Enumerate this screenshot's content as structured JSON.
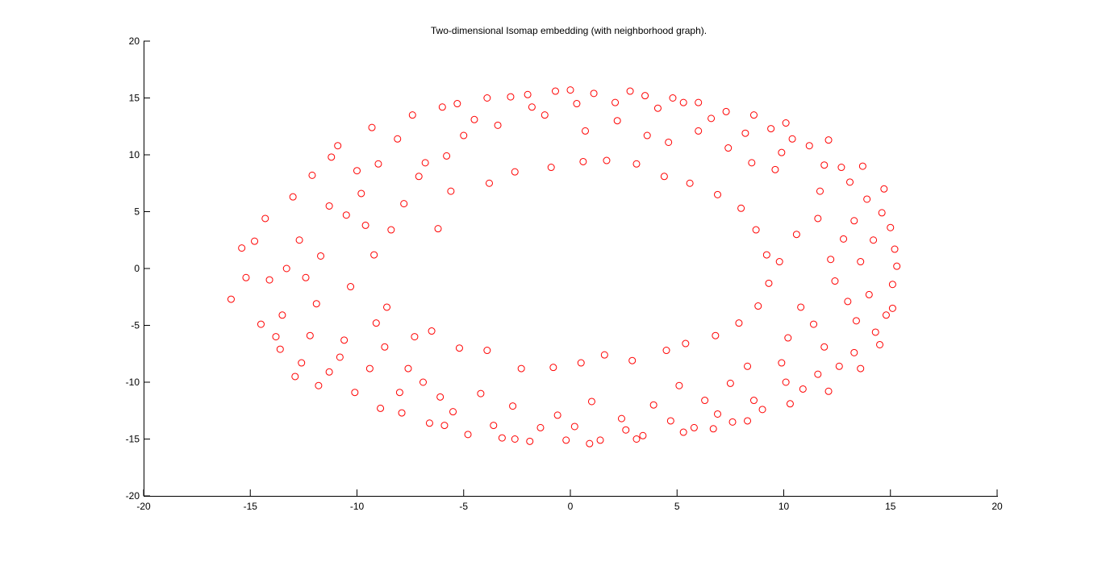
{
  "chart_data": {
    "type": "scatter",
    "title": "Two-dimensional Isomap embedding (with neighborhood graph).",
    "xlabel": "",
    "ylabel": "",
    "xlim": [
      -20,
      20
    ],
    "ylim": [
      -20,
      20
    ],
    "xticks": [
      -20,
      -15,
      -10,
      -5,
      0,
      5,
      10,
      15,
      20
    ],
    "yticks": [
      -20,
      -15,
      -10,
      -5,
      0,
      5,
      10,
      15,
      20
    ],
    "grid": false,
    "marker": "open circle",
    "color": "#ff0000",
    "points": [
      [
        -15.4,
        1.8
      ],
      [
        -15.9,
        -2.7
      ],
      [
        -14.3,
        4.4
      ],
      [
        -13.8,
        -6.0
      ],
      [
        -12.1,
        8.2
      ],
      [
        -12.6,
        -8.3
      ],
      [
        -11.3,
        -9.1
      ],
      [
        -10.9,
        10.8
      ],
      [
        -10.1,
        -10.9
      ],
      [
        -9.3,
        12.4
      ],
      [
        -8.9,
        -12.3
      ],
      [
        -7.4,
        13.5
      ],
      [
        -6.6,
        -13.6
      ],
      [
        -5.3,
        14.5
      ],
      [
        -4.8,
        -14.6
      ],
      [
        -2.8,
        15.1
      ],
      [
        -2.6,
        -15.0
      ],
      [
        -0.7,
        15.6
      ],
      [
        -0.2,
        -15.1
      ],
      [
        1.1,
        15.4
      ],
      [
        1.4,
        -15.1
      ],
      [
        3.5,
        15.2
      ],
      [
        3.4,
        -14.7
      ],
      [
        5.3,
        14.6
      ],
      [
        5.8,
        -14.0
      ],
      [
        7.3,
        13.8
      ],
      [
        7.6,
        -13.5
      ],
      [
        9.4,
        12.3
      ],
      [
        9.0,
        -12.4
      ],
      [
        11.2,
        10.8
      ],
      [
        10.9,
        -10.6
      ],
      [
        12.7,
        8.9
      ],
      [
        12.6,
        -8.6
      ],
      [
        13.9,
        6.1
      ],
      [
        14.3,
        -5.6
      ],
      [
        15.2,
        1.7
      ],
      [
        15.1,
        -1.4
      ],
      [
        15.3,
        0.2
      ],
      [
        -13.3,
        0.0
      ],
      [
        -12.7,
        2.5
      ],
      [
        -11.9,
        -3.1
      ],
      [
        -11.3,
        5.5
      ],
      [
        -10.6,
        -6.3
      ],
      [
        -9.6,
        3.8
      ],
      [
        -9.1,
        -4.8
      ],
      [
        -9.2,
        1.2
      ],
      [
        -8.6,
        -3.4
      ],
      [
        -8.4,
        3.4
      ],
      [
        -7.8,
        5.7
      ],
      [
        -7.3,
        -6.0
      ],
      [
        -6.2,
        3.5
      ],
      [
        -6.5,
        -5.5
      ],
      [
        -5.6,
        6.8
      ],
      [
        -5.2,
        -7.0
      ],
      [
        -3.8,
        7.5
      ],
      [
        -3.9,
        -7.2
      ],
      [
        -2.6,
        8.5
      ],
      [
        -2.3,
        -8.8
      ],
      [
        -0.9,
        8.9
      ],
      [
        -0.8,
        -8.7
      ],
      [
        0.6,
        9.4
      ],
      [
        0.5,
        -8.3
      ],
      [
        1.7,
        9.5
      ],
      [
        1.6,
        -7.6
      ],
      [
        3.1,
        9.2
      ],
      [
        2.9,
        -8.1
      ],
      [
        4.4,
        8.1
      ],
      [
        4.5,
        -7.2
      ],
      [
        5.6,
        7.5
      ],
      [
        5.4,
        -6.6
      ],
      [
        6.9,
        6.5
      ],
      [
        6.8,
        -5.9
      ],
      [
        8.0,
        5.3
      ],
      [
        7.9,
        -4.8
      ],
      [
        8.7,
        3.4
      ],
      [
        8.8,
        -3.3
      ],
      [
        9.2,
        1.2
      ],
      [
        9.3,
        -1.3
      ],
      [
        9.8,
        0.6
      ],
      [
        10.6,
        3.0
      ],
      [
        10.8,
        -3.4
      ],
      [
        11.7,
        6.8
      ],
      [
        11.9,
        -6.9
      ],
      [
        12.8,
        2.6
      ],
      [
        13.0,
        -2.9
      ],
      [
        13.6,
        0.6
      ],
      [
        -14.1,
        -1.0
      ],
      [
        -12.2,
        -5.9
      ],
      [
        -11.2,
        9.8
      ],
      [
        -10.3,
        -1.6
      ],
      [
        -10.0,
        8.6
      ],
      [
        -9.4,
        -8.8
      ],
      [
        -8.1,
        11.4
      ],
      [
        -8.0,
        -10.9
      ],
      [
        -6.8,
        9.3
      ],
      [
        -6.1,
        -11.3
      ],
      [
        -5.0,
        11.7
      ],
      [
        -4.2,
        -11.0
      ],
      [
        -3.4,
        12.6
      ],
      [
        -2.7,
        -12.1
      ],
      [
        -1.2,
        13.5
      ],
      [
        -0.6,
        -12.9
      ],
      [
        0.7,
        12.1
      ],
      [
        1.0,
        -11.7
      ],
      [
        2.2,
        13.0
      ],
      [
        2.4,
        -13.2
      ],
      [
        3.6,
        11.7
      ],
      [
        3.9,
        -12.0
      ],
      [
        4.6,
        11.1
      ],
      [
        5.1,
        -10.3
      ],
      [
        6.0,
        12.1
      ],
      [
        6.3,
        -11.6
      ],
      [
        7.4,
        10.6
      ],
      [
        7.5,
        -10.1
      ],
      [
        8.5,
        9.3
      ],
      [
        8.3,
        -8.6
      ],
      [
        9.6,
        8.7
      ],
      [
        9.9,
        -8.3
      ],
      [
        10.4,
        11.4
      ],
      [
        10.2,
        -6.1
      ],
      [
        11.6,
        4.4
      ],
      [
        11.4,
        -4.9
      ],
      [
        12.2,
        0.8
      ],
      [
        12.4,
        -1.1
      ],
      [
        13.3,
        4.2
      ],
      [
        13.4,
        -4.6
      ],
      [
        14.2,
        2.5
      ],
      [
        14.0,
        -2.3
      ],
      [
        -13.0,
        6.3
      ],
      [
        -13.5,
        -4.1
      ],
      [
        -12.4,
        -0.8
      ],
      [
        -11.7,
        1.1
      ],
      [
        -10.8,
        -7.8
      ],
      [
        -10.5,
        4.7
      ],
      [
        -9.8,
        6.6
      ],
      [
        -9.0,
        9.2
      ],
      [
        -8.7,
        -6.9
      ],
      [
        -7.6,
        -8.8
      ],
      [
        -7.1,
        8.1
      ],
      [
        -6.9,
        -10.0
      ],
      [
        -5.8,
        9.9
      ],
      [
        -5.5,
        -12.6
      ],
      [
        -4.5,
        13.1
      ],
      [
        -3.6,
        -13.8
      ],
      [
        -1.8,
        14.2
      ],
      [
        -1.4,
        -14.0
      ],
      [
        0.3,
        14.5
      ],
      [
        0.2,
        -13.9
      ],
      [
        2.1,
        14.6
      ],
      [
        2.6,
        -14.2
      ],
      [
        4.1,
        14.1
      ],
      [
        4.7,
        -13.4
      ],
      [
        6.6,
        13.2
      ],
      [
        6.9,
        -12.8
      ],
      [
        8.2,
        11.9
      ],
      [
        8.6,
        -11.6
      ],
      [
        9.9,
        10.2
      ],
      [
        10.1,
        -10.0
      ],
      [
        11.9,
        9.1
      ],
      [
        11.6,
        -9.3
      ],
      [
        13.1,
        7.6
      ],
      [
        13.3,
        -7.4
      ],
      [
        14.6,
        4.9
      ],
      [
        14.8,
        -4.1
      ],
      [
        -15.2,
        -0.8
      ],
      [
        -14.8,
        2.4
      ],
      [
        -14.5,
        -4.9
      ],
      [
        -13.6,
        -7.1
      ],
      [
        -12.9,
        -9.5
      ],
      [
        -11.8,
        -10.3
      ],
      [
        -7.9,
        -12.7
      ],
      [
        -5.9,
        -13.8
      ],
      [
        -3.2,
        -14.9
      ],
      [
        -1.9,
        -15.2
      ],
      [
        0.9,
        -15.4
      ],
      [
        3.1,
        -15.0
      ],
      [
        5.3,
        -14.4
      ],
      [
        -6.0,
        14.2
      ],
      [
        -3.9,
        15.0
      ],
      [
        -2.0,
        15.3
      ],
      [
        0.0,
        15.7
      ],
      [
        2.8,
        15.6
      ],
      [
        4.8,
        15.0
      ],
      [
        6.0,
        14.6
      ],
      [
        8.6,
        13.5
      ],
      [
        10.1,
        12.8
      ],
      [
        12.1,
        11.3
      ],
      [
        13.7,
        9.0
      ],
      [
        14.7,
        7.0
      ],
      [
        15.0,
        3.6
      ],
      [
        15.1,
        -3.5
      ],
      [
        14.5,
        -6.7
      ],
      [
        13.6,
        -8.8
      ],
      [
        12.1,
        -10.8
      ],
      [
        10.3,
        -11.9
      ],
      [
        8.3,
        -13.4
      ],
      [
        6.7,
        -14.1
      ]
    ]
  }
}
